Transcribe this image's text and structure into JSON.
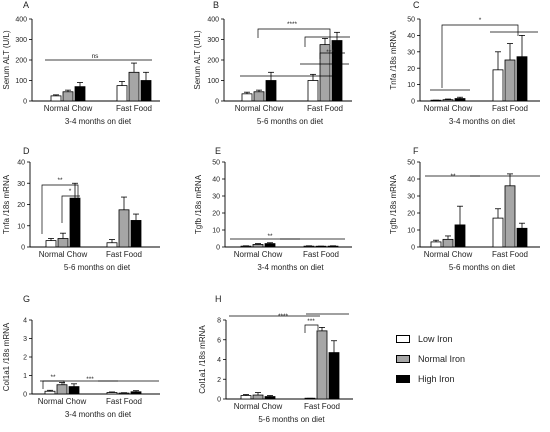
{
  "legend": [
    {
      "name": "Low Iron",
      "color": "#ffffff"
    },
    {
      "name": "Normal Iron",
      "color": "#a6a6a6"
    },
    {
      "name": "High Iron",
      "color": "#000000"
    }
  ],
  "chart_data": [
    {
      "type": "bar",
      "panel_label": "A",
      "ylabel": "Serum ALT (U/L)",
      "ylim": [
        0,
        400
      ],
      "yticks": [
        0,
        100,
        200,
        300,
        400
      ],
      "categories": [
        "Normal Chow",
        "Fast Food"
      ],
      "xlabel": "3-4 months on diet",
      "series": [
        {
          "values": [
            25,
            75
          ],
          "errors": [
            5,
            20
          ]
        },
        {
          "values": [
            45,
            140
          ],
          "errors": [
            8,
            45
          ]
        },
        {
          "values": [
            70,
            100
          ],
          "errors": [
            20,
            40
          ]
        }
      ],
      "significance": [
        {
          "label": "ns"
        }
      ]
    },
    {
      "type": "bar",
      "panel_label": "B",
      "ylabel": "Serum ALT (U/L)",
      "ylim": [
        0,
        400
      ],
      "yticks": [
        0,
        100,
        200,
        300,
        400
      ],
      "categories": [
        "Normal Chow",
        "Fast Food"
      ],
      "xlabel": "5-6 months on diet",
      "series": [
        {
          "values": [
            35,
            100
          ],
          "errors": [
            8,
            30
          ]
        },
        {
          "values": [
            45,
            275
          ],
          "errors": [
            8,
            30
          ]
        },
        {
          "values": [
            100,
            295
          ],
          "errors": [
            40,
            40
          ]
        }
      ],
      "significance": [
        {
          "label": "****"
        },
        {
          "label": "***"
        }
      ]
    },
    {
      "type": "bar",
      "panel_label": "C",
      "ylabel": "Tnfa /18s mRNA",
      "ylim": [
        0,
        50
      ],
      "yticks": [
        0,
        10,
        20,
        30,
        40,
        50
      ],
      "categories": [
        "Normal Chow",
        "Fast Food"
      ],
      "xlabel": "3-4 months on diet",
      "series": [
        {
          "values": [
            0.3,
            19
          ],
          "errors": [
            0.2,
            11
          ]
        },
        {
          "values": [
            0.8,
            25
          ],
          "errors": [
            0.4,
            10
          ]
        },
        {
          "values": [
            1.5,
            27
          ],
          "errors": [
            0.8,
            13
          ]
        }
      ],
      "significance": [
        {
          "label": "*"
        }
      ]
    },
    {
      "type": "bar",
      "panel_label": "D",
      "ylabel": "Tnfa /18s mRNA",
      "ylim": [
        0,
        40
      ],
      "yticks": [
        0,
        10,
        20,
        30,
        40
      ],
      "categories": [
        "Normal Chow",
        "Fast Food"
      ],
      "xlabel": "5-6 months on diet",
      "series": [
        {
          "values": [
            3,
            2
          ],
          "errors": [
            1,
            1.5
          ]
        },
        {
          "values": [
            4,
            17.5
          ],
          "errors": [
            2.5,
            6
          ]
        },
        {
          "values": [
            23,
            12.5
          ],
          "errors": [
            7,
            3
          ]
        }
      ],
      "significance": [
        {
          "label": "**"
        },
        {
          "label": "*"
        }
      ]
    },
    {
      "type": "bar",
      "panel_label": "E",
      "ylabel": "Tgfb /18s mRNA",
      "ylim": [
        0,
        50
      ],
      "yticks": [
        0,
        10,
        20,
        30,
        40,
        50
      ],
      "categories": [
        "Normal Chow",
        "Fast Food"
      ],
      "xlabel": "3-4 months on diet",
      "series": [
        {
          "values": [
            0.5,
            0.5
          ],
          "errors": [
            0.2,
            0.2
          ]
        },
        {
          "values": [
            1.5,
            0.3
          ],
          "errors": [
            0.5,
            0.2
          ]
        },
        {
          "values": [
            2,
            0.5
          ],
          "errors": [
            0.5,
            0.2
          ]
        }
      ],
      "significance": [
        {
          "label": "**"
        }
      ]
    },
    {
      "type": "bar",
      "panel_label": "F",
      "ylabel": "Tgfb /18s mRNA",
      "ylim": [
        0,
        50
      ],
      "yticks": [
        0,
        10,
        20,
        30,
        40,
        50
      ],
      "categories": [
        "Normal Chow",
        "Fast Food"
      ],
      "xlabel": "5-6 months on diet",
      "series": [
        {
          "values": [
            3,
            17
          ],
          "errors": [
            1,
            5.5
          ]
        },
        {
          "values": [
            4.5,
            36
          ],
          "errors": [
            2,
            7
          ]
        },
        {
          "values": [
            13,
            11
          ],
          "errors": [
            11,
            3
          ]
        }
      ],
      "significance": [
        {
          "label": "**"
        }
      ]
    },
    {
      "type": "bar",
      "panel_label": "G",
      "ylabel": "Col1a1 /18s mRNA",
      "ylim": [
        0,
        4
      ],
      "yticks": [
        0,
        1,
        2,
        3,
        4
      ],
      "categories": [
        "Normal Chow",
        "Fast Food"
      ],
      "xlabel": "3-4 months on diet",
      "series": [
        {
          "values": [
            0.15,
            0.08
          ],
          "errors": [
            0.05,
            0.03
          ]
        },
        {
          "values": [
            0.5,
            0.05
          ],
          "errors": [
            0.12,
            0.02
          ]
        },
        {
          "values": [
            0.4,
            0.12
          ],
          "errors": [
            0.15,
            0.06
          ]
        }
      ],
      "significance": [
        {
          "label": "**"
        },
        {
          "label": "***"
        }
      ]
    },
    {
      "type": "bar",
      "panel_label": "H",
      "ylabel": "Col1a1 /18s mRNA",
      "ylim": [
        0,
        8
      ],
      "yticks": [
        0,
        2,
        4,
        6,
        8
      ],
      "categories": [
        "Normal Chow",
        "Fast Food"
      ],
      "xlabel": "5-6 months on diet",
      "series": [
        {
          "values": [
            0.35,
            0.05
          ],
          "errors": [
            0.1,
            0.02
          ]
        },
        {
          "values": [
            0.4,
            6.9
          ],
          "errors": [
            0.25,
            0.35
          ]
        },
        {
          "values": [
            0.25,
            4.7
          ],
          "errors": [
            0.1,
            1.2
          ]
        }
      ],
      "significance": [
        {
          "label": "****"
        },
        {
          "label": "***"
        }
      ]
    }
  ]
}
